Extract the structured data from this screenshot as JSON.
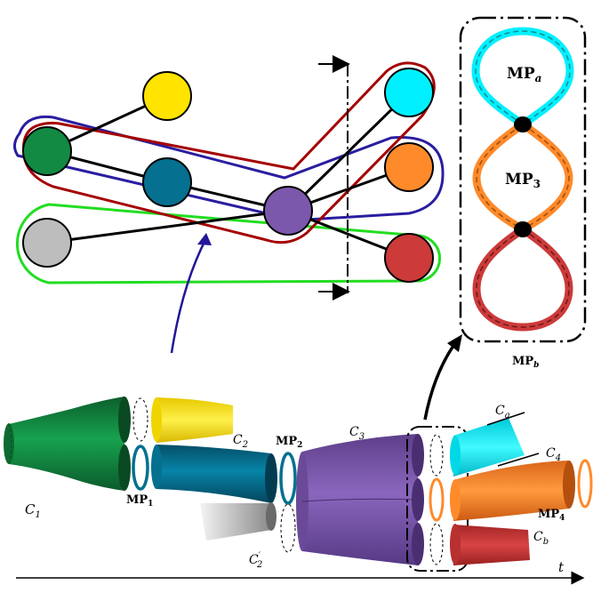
{
  "colors": {
    "green": "#138a43",
    "yellow": "#ffe400",
    "teal": "#05708f",
    "gray": "#bdbdbd",
    "purple": "#7c58ac",
    "cyan": "#00f0ff",
    "orange": "#ff8a2a",
    "red": "#cc3a3a",
    "hyper_blue": "#2a1ea0",
    "hyper_red": "#a50000",
    "hyper_green": "#22dd22",
    "arrow": "#23169a"
  },
  "graph": {
    "nodes": [
      {
        "id": "g",
        "color": "green"
      },
      {
        "id": "y",
        "color": "yellow"
      },
      {
        "id": "t",
        "color": "teal"
      },
      {
        "id": "gr",
        "color": "gray"
      },
      {
        "id": "p",
        "color": "purple"
      },
      {
        "id": "c",
        "color": "cyan"
      },
      {
        "id": "o",
        "color": "orange"
      },
      {
        "id": "r",
        "color": "red"
      }
    ],
    "edges": [
      [
        "g",
        "y"
      ],
      [
        "g",
        "t"
      ],
      [
        "t",
        "p"
      ],
      [
        "gr",
        "p"
      ],
      [
        "p",
        "c"
      ],
      [
        "p",
        "o"
      ],
      [
        "p",
        "r"
      ],
      [
        "g",
        "c"
      ],
      [
        "g",
        "o"
      ]
    ]
  },
  "figure8": {
    "top_label_main": "MP",
    "top_label_sub": "a",
    "mid_label_main": "MP",
    "mid_label_sub": "3",
    "box_label_main": "MP",
    "box_label_sub": "b"
  },
  "pipeline": {
    "c1": {
      "main": "C",
      "sub": "1"
    },
    "c2": {
      "main": "C",
      "sub": "2"
    },
    "c2p": {
      "main": "C",
      "sub": "2",
      "prime": "′"
    },
    "c3": {
      "main": "C",
      "sub": "3"
    },
    "ca": {
      "main": "C",
      "sub": "a"
    },
    "c4": {
      "main": "C",
      "sub": "4"
    },
    "cb": {
      "main": "C",
      "sub": "b"
    },
    "mp1": {
      "main": "MP",
      "sub": "1"
    },
    "mp2": {
      "main": "MP",
      "sub": "2"
    },
    "mp4": {
      "main": "MP",
      "sub": "4"
    },
    "time": "t"
  }
}
